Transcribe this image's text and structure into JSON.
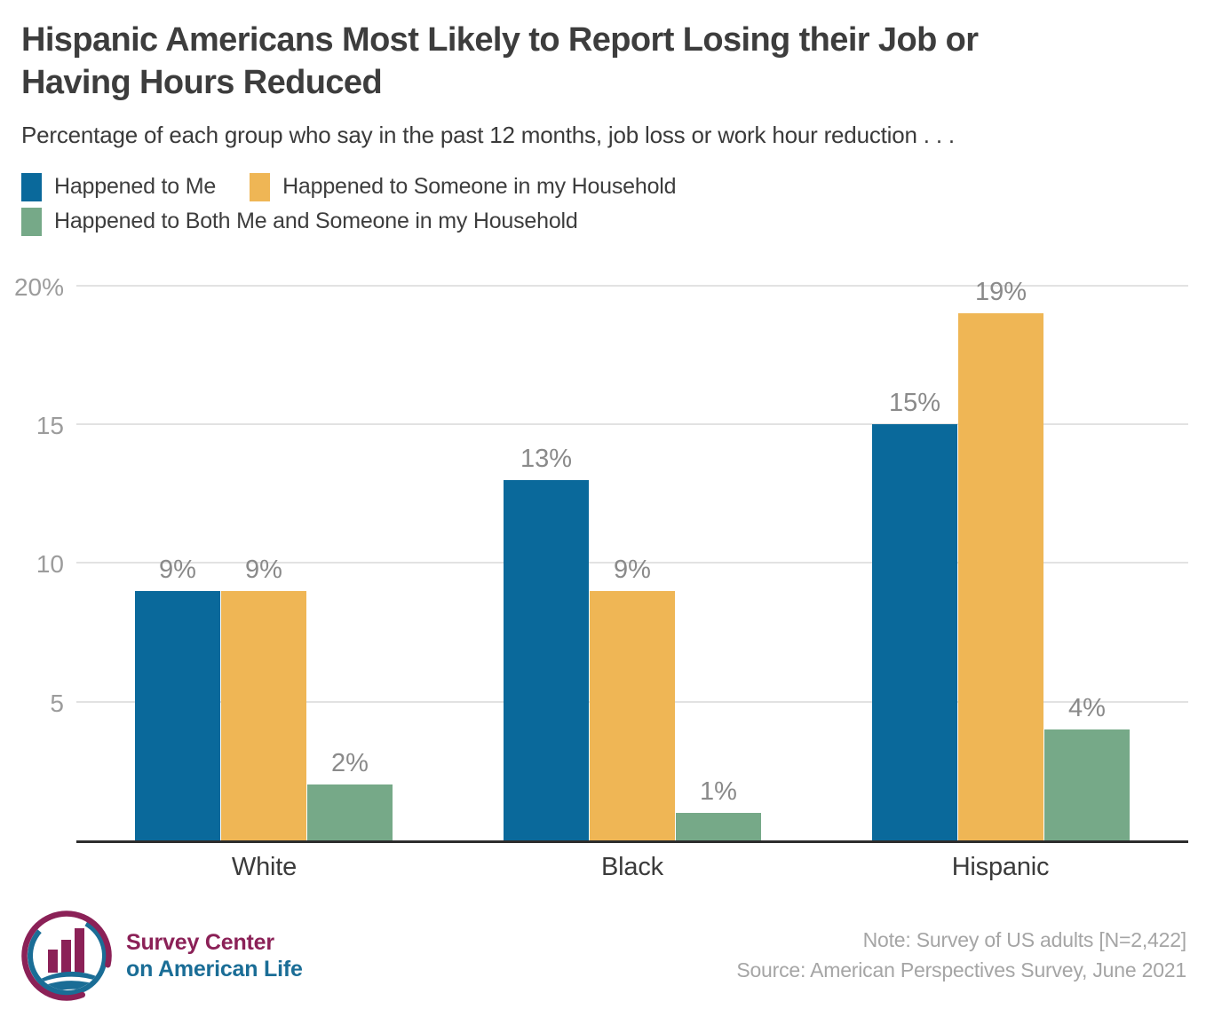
{
  "header": {
    "title_lines": [
      "Hispanic Americans Most Likely to Report Losing their Job or",
      "Having Hours Reduced"
    ],
    "subtitle": "Percentage of each group who say in the past 12 months, job loss or work hour reduction . . ."
  },
  "chart_data": {
    "type": "bar",
    "categories": [
      "White",
      "Black",
      "Hispanic"
    ],
    "series": [
      {
        "name": "Happened to Me",
        "color": "#0a699b",
        "values": [
          9,
          13,
          15
        ]
      },
      {
        "name": "Happened to Someone in my Household",
        "color": "#efb655",
        "values": [
          9,
          9,
          19
        ]
      },
      {
        "name": "Happened to Both Me and Someone in my Household",
        "color": "#76a988",
        "values": [
          2,
          1,
          4
        ]
      }
    ],
    "ylim": [
      0,
      20
    ],
    "yticks": [
      {
        "value": 20,
        "label": "20%"
      },
      {
        "value": 15,
        "label": "15"
      },
      {
        "value": 10,
        "label": "10"
      },
      {
        "value": 5,
        "label": "5"
      }
    ],
    "value_label_format": "{v}%",
    "grid": true,
    "legend_position": "top"
  },
  "footer": {
    "brand_line1": "Survey Center",
    "brand_line2": "on American Life",
    "note": "Note: Survey of US adults [N=2,422]",
    "source": "Source: American Perspectives Survey, June 2021"
  },
  "colors": {
    "blue": "#0a699b",
    "orange": "#efb655",
    "green": "#76a988",
    "maroon": "#8b2157",
    "teal": "#1a6d96",
    "gridline": "#e2e2e2",
    "axis_line": "#2d2d2d",
    "tick_text": "#9c9c9c",
    "value_text": "#8a8a8a"
  }
}
